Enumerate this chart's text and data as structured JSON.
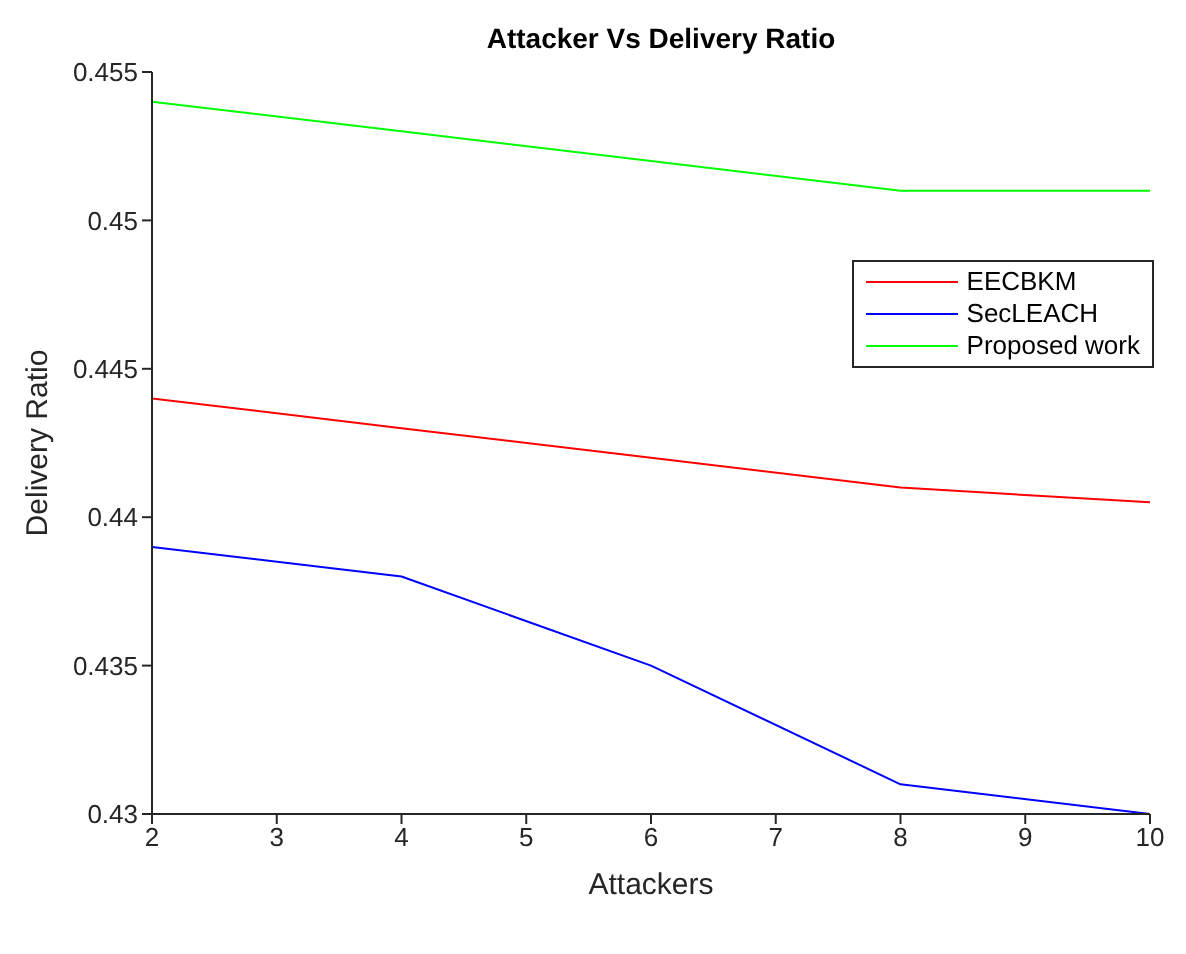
{
  "chart_data": {
    "type": "line",
    "title": "Attacker Vs Delivery Ratio",
    "xlabel": "Attackers",
    "ylabel": "Delivery Ratio",
    "x": [
      2,
      4,
      6,
      8,
      10
    ],
    "series": [
      {
        "name": "EECBKM",
        "color": "#ff0000",
        "values": [
          0.444,
          0.443,
          0.442,
          0.441,
          0.4405
        ]
      },
      {
        "name": "SecLEACH",
        "color": "#0000ff",
        "values": [
          0.439,
          0.438,
          0.435,
          0.431,
          0.43
        ]
      },
      {
        "name": "Proposed work",
        "color": "#00ff00",
        "values": [
          0.454,
          0.453,
          0.452,
          0.451,
          0.451
        ]
      }
    ],
    "xlim": [
      2,
      10
    ],
    "xticks": [
      2,
      3,
      4,
      5,
      6,
      7,
      8,
      9,
      10
    ],
    "ylim": [
      0.43,
      0.455
    ],
    "yticks": [
      0.43,
      0.435,
      0.44,
      0.445,
      0.45,
      0.455
    ],
    "grid": false,
    "legend": "top right",
    "marker": "none",
    "line_style": "solid"
  }
}
